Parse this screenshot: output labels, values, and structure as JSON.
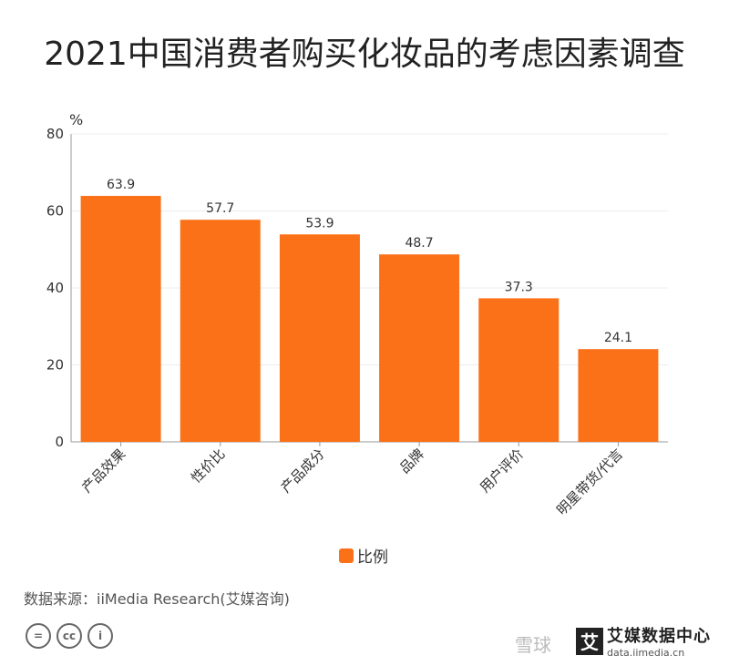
{
  "title": "2021中国消费者购买化妆品的考虑因素调查",
  "chart_data": {
    "type": "bar",
    "title": "2021中国消费者购买化妆品的考虑因素调查",
    "ylabel": "%",
    "xlabel": "",
    "categories": [
      "产品效果",
      "性价比",
      "产品成分",
      "品牌",
      "用户评价",
      "明星带货/代言"
    ],
    "series": [
      {
        "name": "比例",
        "values": [
          63.9,
          57.7,
          53.9,
          48.7,
          37.3,
          24.1
        ]
      }
    ],
    "ylim": [
      0,
      80
    ],
    "yticks": [
      0,
      20,
      40,
      60,
      80
    ],
    "grid": true,
    "legend": "bottom-center",
    "bar_color": "#fb7118"
  },
  "legend_label": "比例",
  "source": "数据来源：iiMedia Research(艾媒咨询)",
  "cc_icons": [
    "=",
    "cc",
    "i"
  ],
  "logo": {
    "mark": "艾",
    "name": "艾媒数据中心",
    "url": "data.iimedia.cn"
  },
  "watermark": "雪球"
}
